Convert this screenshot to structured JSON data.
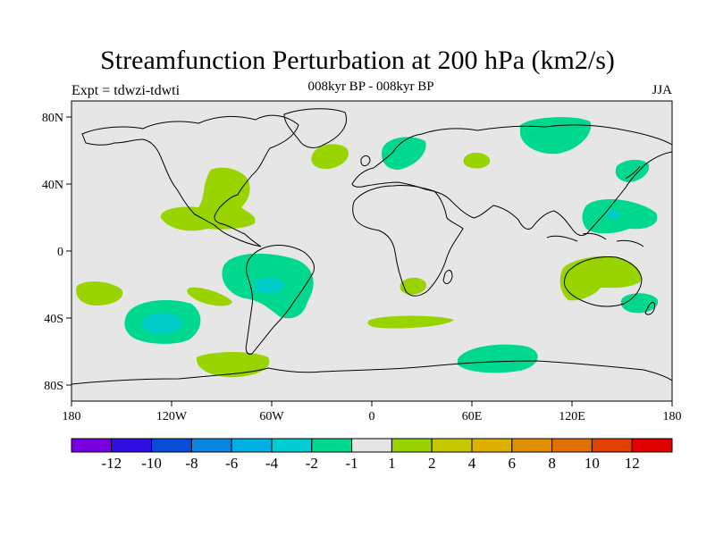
{
  "title": "Streamfunction Perturbation at 200 hPa (km2/s)",
  "subtitle": "008kyr BP - 008kyr BP",
  "left_label": "Expt = tdwzi-tdwti",
  "right_label": "JJA",
  "colors": {
    "ocean_background": "#e6e6e6",
    "coastline": "#000000",
    "negative_fill": "#00d890",
    "negative_core": "#00ccc8",
    "positive_fill": "#99d400"
  },
  "map": {
    "projection": "cylindrical-equidistant",
    "lon_range": [
      -180,
      180
    ],
    "lat_range": [
      -90,
      90
    ],
    "x_ticks": [
      "180",
      "120W",
      "60W",
      "0",
      "60E",
      "120E",
      "180"
    ],
    "y_ticks": [
      "80N",
      "40N",
      "0",
      "40S",
      "80S"
    ]
  },
  "colorbar": {
    "colors": [
      "#7a00e0",
      "#3010e0",
      "#0a4cd8",
      "#0a86e0",
      "#00b0e0",
      "#00ccd4",
      "#00d890",
      "#e6e6e6",
      "#99d400",
      "#c8c800",
      "#e0b000",
      "#e09000",
      "#e07000",
      "#e04000",
      "#e00000"
    ],
    "labels": [
      "-12",
      "-10",
      "-8",
      "-6",
      "-4",
      "-2",
      "-1",
      "1",
      "2",
      "4",
      "6",
      "8",
      "10",
      "12"
    ]
  }
}
